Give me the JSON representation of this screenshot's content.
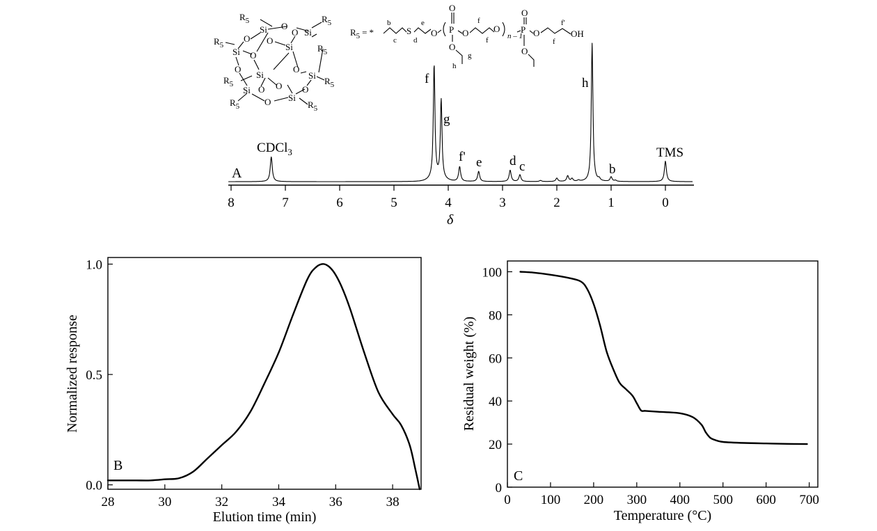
{
  "chart_data": [
    {
      "panel": "A",
      "type": "line",
      "xlabel": "δ",
      "xlim": [
        8,
        -0.5
      ],
      "x_reversed": true,
      "x_ticks": [
        8,
        7,
        6,
        5,
        4,
        3,
        2,
        1,
        0
      ],
      "peaks": [
        {
          "label": "CDCl3",
          "x": 7.26,
          "height": 0.22
        },
        {
          "label": "f",
          "x": 4.26,
          "height": 1.0
        },
        {
          "label": "g",
          "x": 4.13,
          "height": 0.69
        },
        {
          "label": "f'",
          "x": 3.79,
          "height": 0.13
        },
        {
          "label": "e",
          "x": 3.44,
          "height": 0.09
        },
        {
          "label": "d",
          "x": 2.86,
          "height": 0.1
        },
        {
          "label": "c",
          "x": 2.68,
          "height": 0.06
        },
        {
          "label": "h",
          "x": 1.35,
          "height": 1.22
        },
        {
          "label": "b",
          "x": 1.0,
          "height": 0.04
        },
        {
          "label": "TMS",
          "x": 0.0,
          "height": 0.18
        }
      ],
      "annotations": [
        "CDCl3",
        "TMS",
        "f",
        "g",
        "f'",
        "e",
        "d",
        "c",
        "h",
        "b"
      ]
    },
    {
      "panel": "B",
      "type": "line",
      "xlabel": "Elution time (min)",
      "ylabel": "Normalized response",
      "xlim": [
        28,
        39
      ],
      "ylim": [
        -0.02,
        1.03
      ],
      "x_ticks": [
        28,
        30,
        32,
        34,
        36,
        38
      ],
      "y_ticks": [
        0.0,
        0.5,
        1.0
      ],
      "y_tick_labels": [
        "0.0",
        "0.5",
        "1.0"
      ],
      "x": [
        28,
        28.5,
        29,
        29.5,
        30,
        30.5,
        31,
        31.5,
        32,
        32.5,
        33,
        33.5,
        34,
        34.5,
        35,
        35.3,
        35.6,
        35.9,
        36.2,
        36.5,
        37,
        37.5,
        38,
        38.3,
        38.6,
        38.8,
        38.95
      ],
      "y": [
        0.02,
        0.02,
        0.02,
        0.02,
        0.025,
        0.03,
        0.06,
        0.12,
        0.18,
        0.24,
        0.33,
        0.46,
        0.6,
        0.77,
        0.93,
        0.985,
        1.0,
        0.97,
        0.9,
        0.8,
        0.6,
        0.42,
        0.32,
        0.27,
        0.18,
        0.07,
        -0.02
      ]
    },
    {
      "panel": "C",
      "type": "line",
      "xlabel": "Temperature (°C)",
      "ylabel": "Residual weight (%)",
      "xlim": [
        0,
        720
      ],
      "ylim": [
        0,
        105
      ],
      "x_ticks": [
        0,
        100,
        200,
        300,
        400,
        500,
        600,
        700
      ],
      "y_ticks": [
        0,
        20,
        40,
        60,
        80,
        100
      ],
      "x": [
        30,
        60,
        100,
        140,
        170,
        185,
        200,
        215,
        230,
        245,
        260,
        275,
        290,
        300,
        310,
        320,
        350,
        400,
        430,
        450,
        460,
        470,
        480,
        500,
        550,
        600,
        650,
        695
      ],
      "y": [
        100,
        99.6,
        98.6,
        97.2,
        95.5,
        92,
        85,
        75,
        63,
        55,
        48.5,
        45.5,
        42.5,
        39,
        35.6,
        35.4,
        35,
        34.3,
        32.5,
        29,
        25.5,
        23,
        22,
        21,
        20.5,
        20.3,
        20.1,
        20
      ]
    }
  ],
  "structure": {
    "si": "Si",
    "o": "O",
    "r5": "R",
    "r5_sub": "5",
    "eq_lhs": "R",
    "eq_sub": "5",
    "eq_sign": "=",
    "star": "*",
    "s_atom": "S",
    "p_atom": "P",
    "oh": "OH",
    "n_index": "n – 1",
    "labels": [
      "b",
      "c",
      "d",
      "e",
      "f",
      "f",
      "f",
      "f'",
      "g",
      "h"
    ]
  }
}
